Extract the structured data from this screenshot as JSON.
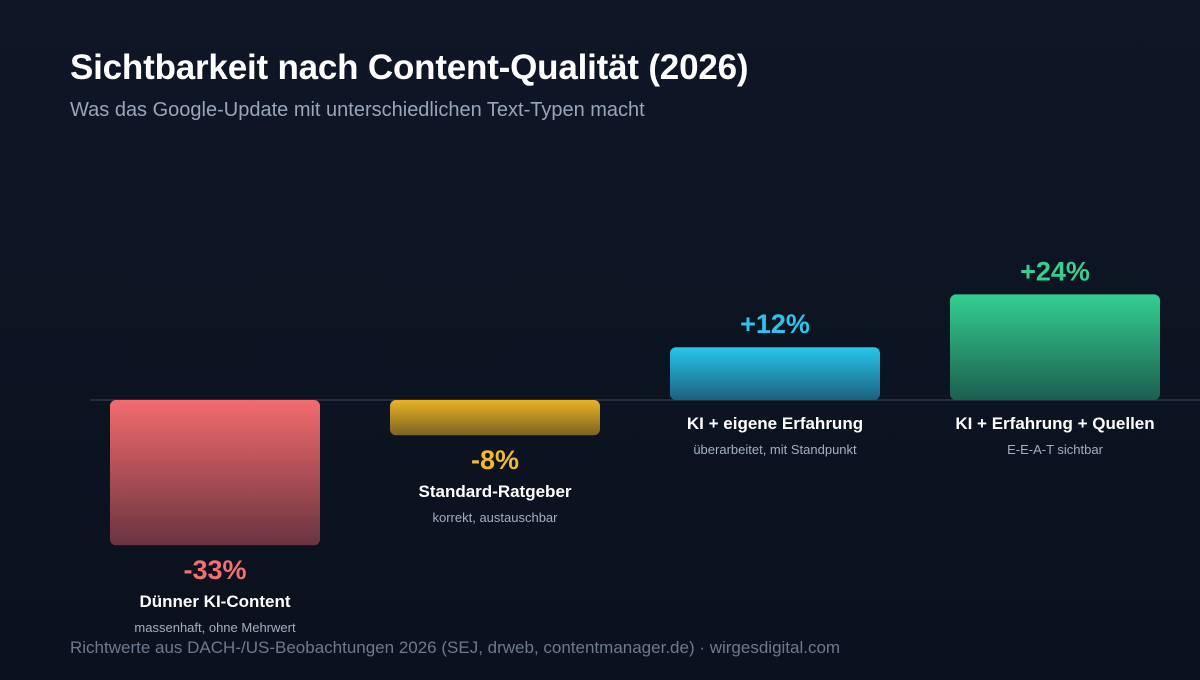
{
  "title": "Sichtbarkeit nach Content-Qualität (2026)",
  "subtitle": "Was das Google-Update mit unterschiedlichen Text-Typen macht",
  "footer": "Richtwerte aus DACH-/US-Beobachtungen 2026 (SEJ, drweb, contentmanager.de) · wirgesdigital.com",
  "chart_data": {
    "type": "bar",
    "title": "Sichtbarkeit nach Content-Qualität (2026)",
    "subtitle": "Was das Google-Update mit unterschiedlichen Text-Typen macht",
    "xlabel": "",
    "ylabel": "",
    "grid": false,
    "baseline": 0,
    "unit": "%",
    "categories": [
      "Dünner KI-Content",
      "Standard-Ratgeber",
      "KI + eigene Erfahrung",
      "KI + Erfahrung + Quellen"
    ],
    "values": [
      -33,
      -8,
      12,
      24
    ],
    "value_labels": [
      "-33%",
      "-8%",
      "+12%",
      "+24%"
    ],
    "descriptions": [
      "massenhaft, ohne Mehrwert",
      "korrekt, austauschbar",
      "überarbeitet, mit Standpunkt",
      "E-E-A-T sichtbar"
    ],
    "colors": [
      {
        "top": "#f36b6e",
        "bottom": "#6a3440",
        "text": "#f46f71"
      },
      {
        "top": "#e9b325",
        "bottom": "#7c6322",
        "text": "#f2b92a"
      },
      {
        "top": "#27c6ea",
        "bottom": "#19617f",
        "text": "#29c5ea"
      },
      {
        "top": "#33cf91",
        "bottom": "#1c5e4e",
        "text": "#36cf8f"
      }
    ],
    "axis_color": "#2c3646"
  }
}
